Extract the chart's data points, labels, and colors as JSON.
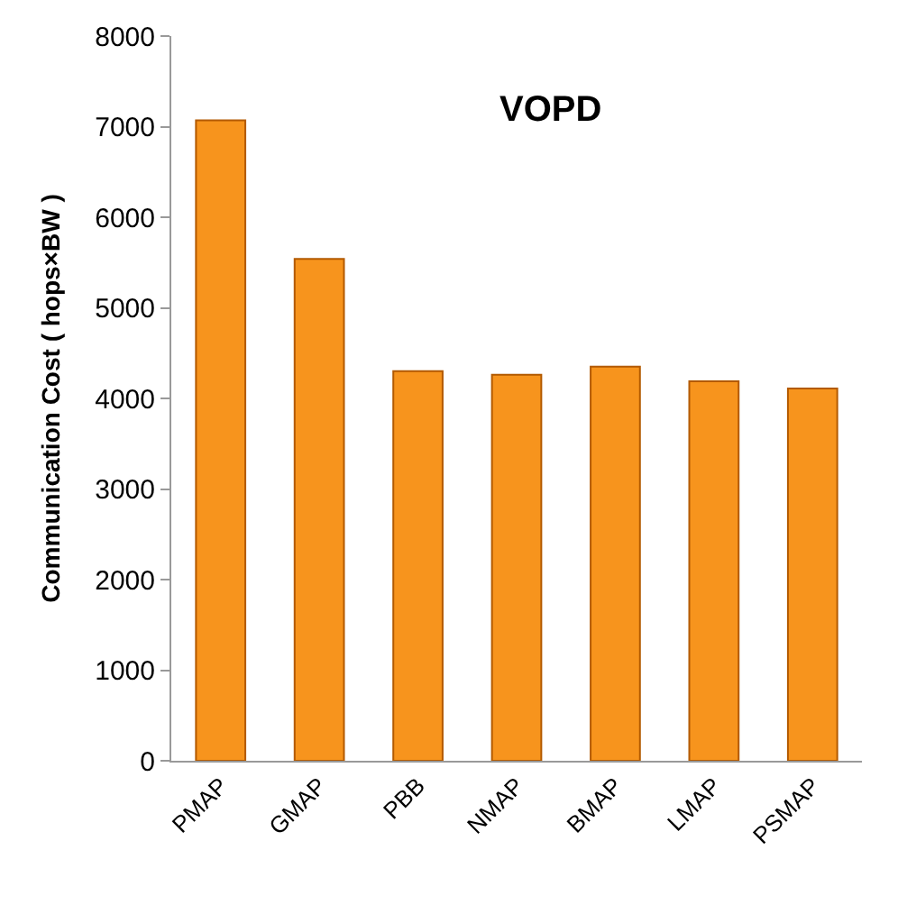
{
  "chart_data": {
    "type": "bar",
    "title": "VOPD",
    "ylabel": "Communication Cost ( hops×BW )",
    "categories": [
      "PMAP",
      "GMAP",
      "PBB",
      "NMAP",
      "BMAP",
      "LMAP",
      "PSMAP"
    ],
    "values": [
      7070,
      5540,
      4300,
      4260,
      4350,
      4190,
      4110
    ],
    "color": "#f7941d",
    "ylim": [
      0,
      8000
    ],
    "yticks": [
      0,
      1000,
      2000,
      3000,
      4000,
      5000,
      6000,
      7000,
      8000
    ]
  }
}
